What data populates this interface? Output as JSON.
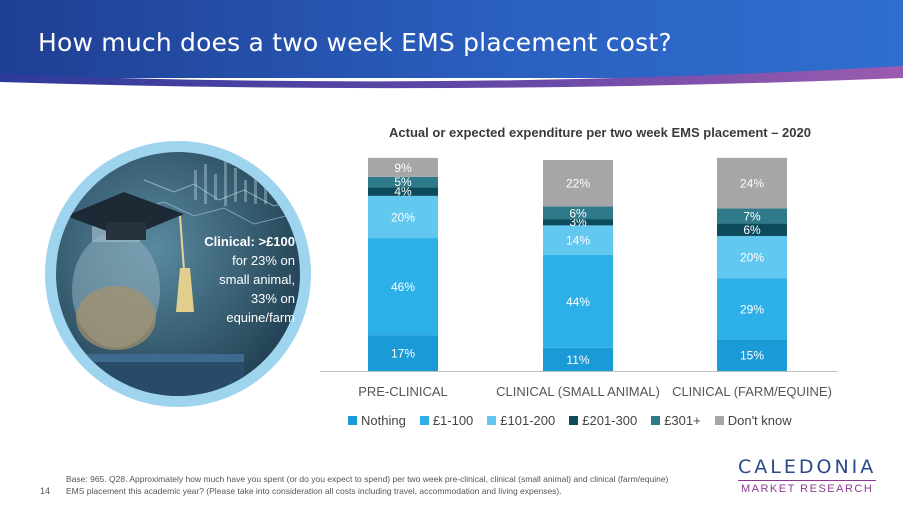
{
  "header": {
    "title": "How much does a two week EMS placement cost?"
  },
  "callout": {
    "bold": "Clinical: >£100",
    "line1": "for 23% on",
    "line2": "small animal,",
    "line3": "33% on",
    "line4": "equine/farm"
  },
  "chart_data": {
    "type": "bar",
    "stacked": true,
    "title": "Actual or expected expenditure per two week EMS placement – 2020",
    "categories": [
      "PRE-CLINICAL",
      "CLINICAL (SMALL ANIMAL)",
      "CLINICAL (FARM/EQUINE)"
    ],
    "series": [
      {
        "name": "Nothing",
        "color": "#1a9ad6",
        "values": [
          17,
          11,
          15
        ]
      },
      {
        "name": "£1-100",
        "color": "#2db0e8",
        "values": [
          46,
          44,
          29
        ]
      },
      {
        "name": "£101-200",
        "color": "#62c8f0",
        "values": [
          20,
          14,
          20
        ]
      },
      {
        "name": "£201-300",
        "color": "#0c4a5c",
        "values": [
          4,
          3,
          6
        ]
      },
      {
        "name": "£301+",
        "color": "#2e7a8a",
        "values": [
          5,
          6,
          7
        ]
      },
      {
        "name": "Don't know",
        "color": "#a6a6a6",
        "values": [
          9,
          22,
          24
        ]
      }
    ],
    "data_labels": [
      [
        "17%",
        "46%",
        "20%",
        "4%",
        "5%",
        "9%"
      ],
      [
        "11%",
        "44%",
        "14%",
        "3%",
        "6%",
        "22%"
      ],
      [
        "15%",
        "29%",
        "20%",
        "6%",
        "7%",
        "24%"
      ]
    ],
    "ylim": [
      0,
      100
    ],
    "grid": false,
    "legend": "bottom"
  },
  "footnote": {
    "text": "Base: 965. Q28. Approximately how much have you spent (or do you expect to spend) per two week pre-clinical, clinical (small animal) and clinical (farm/equine) EMS placement this academic year? (Please take into consideration all costs including travel, accommodation and living expenses).",
    "page": "14"
  },
  "logo": {
    "line1": "CALEDONIA",
    "line2": "MARKET RESEARCH"
  }
}
